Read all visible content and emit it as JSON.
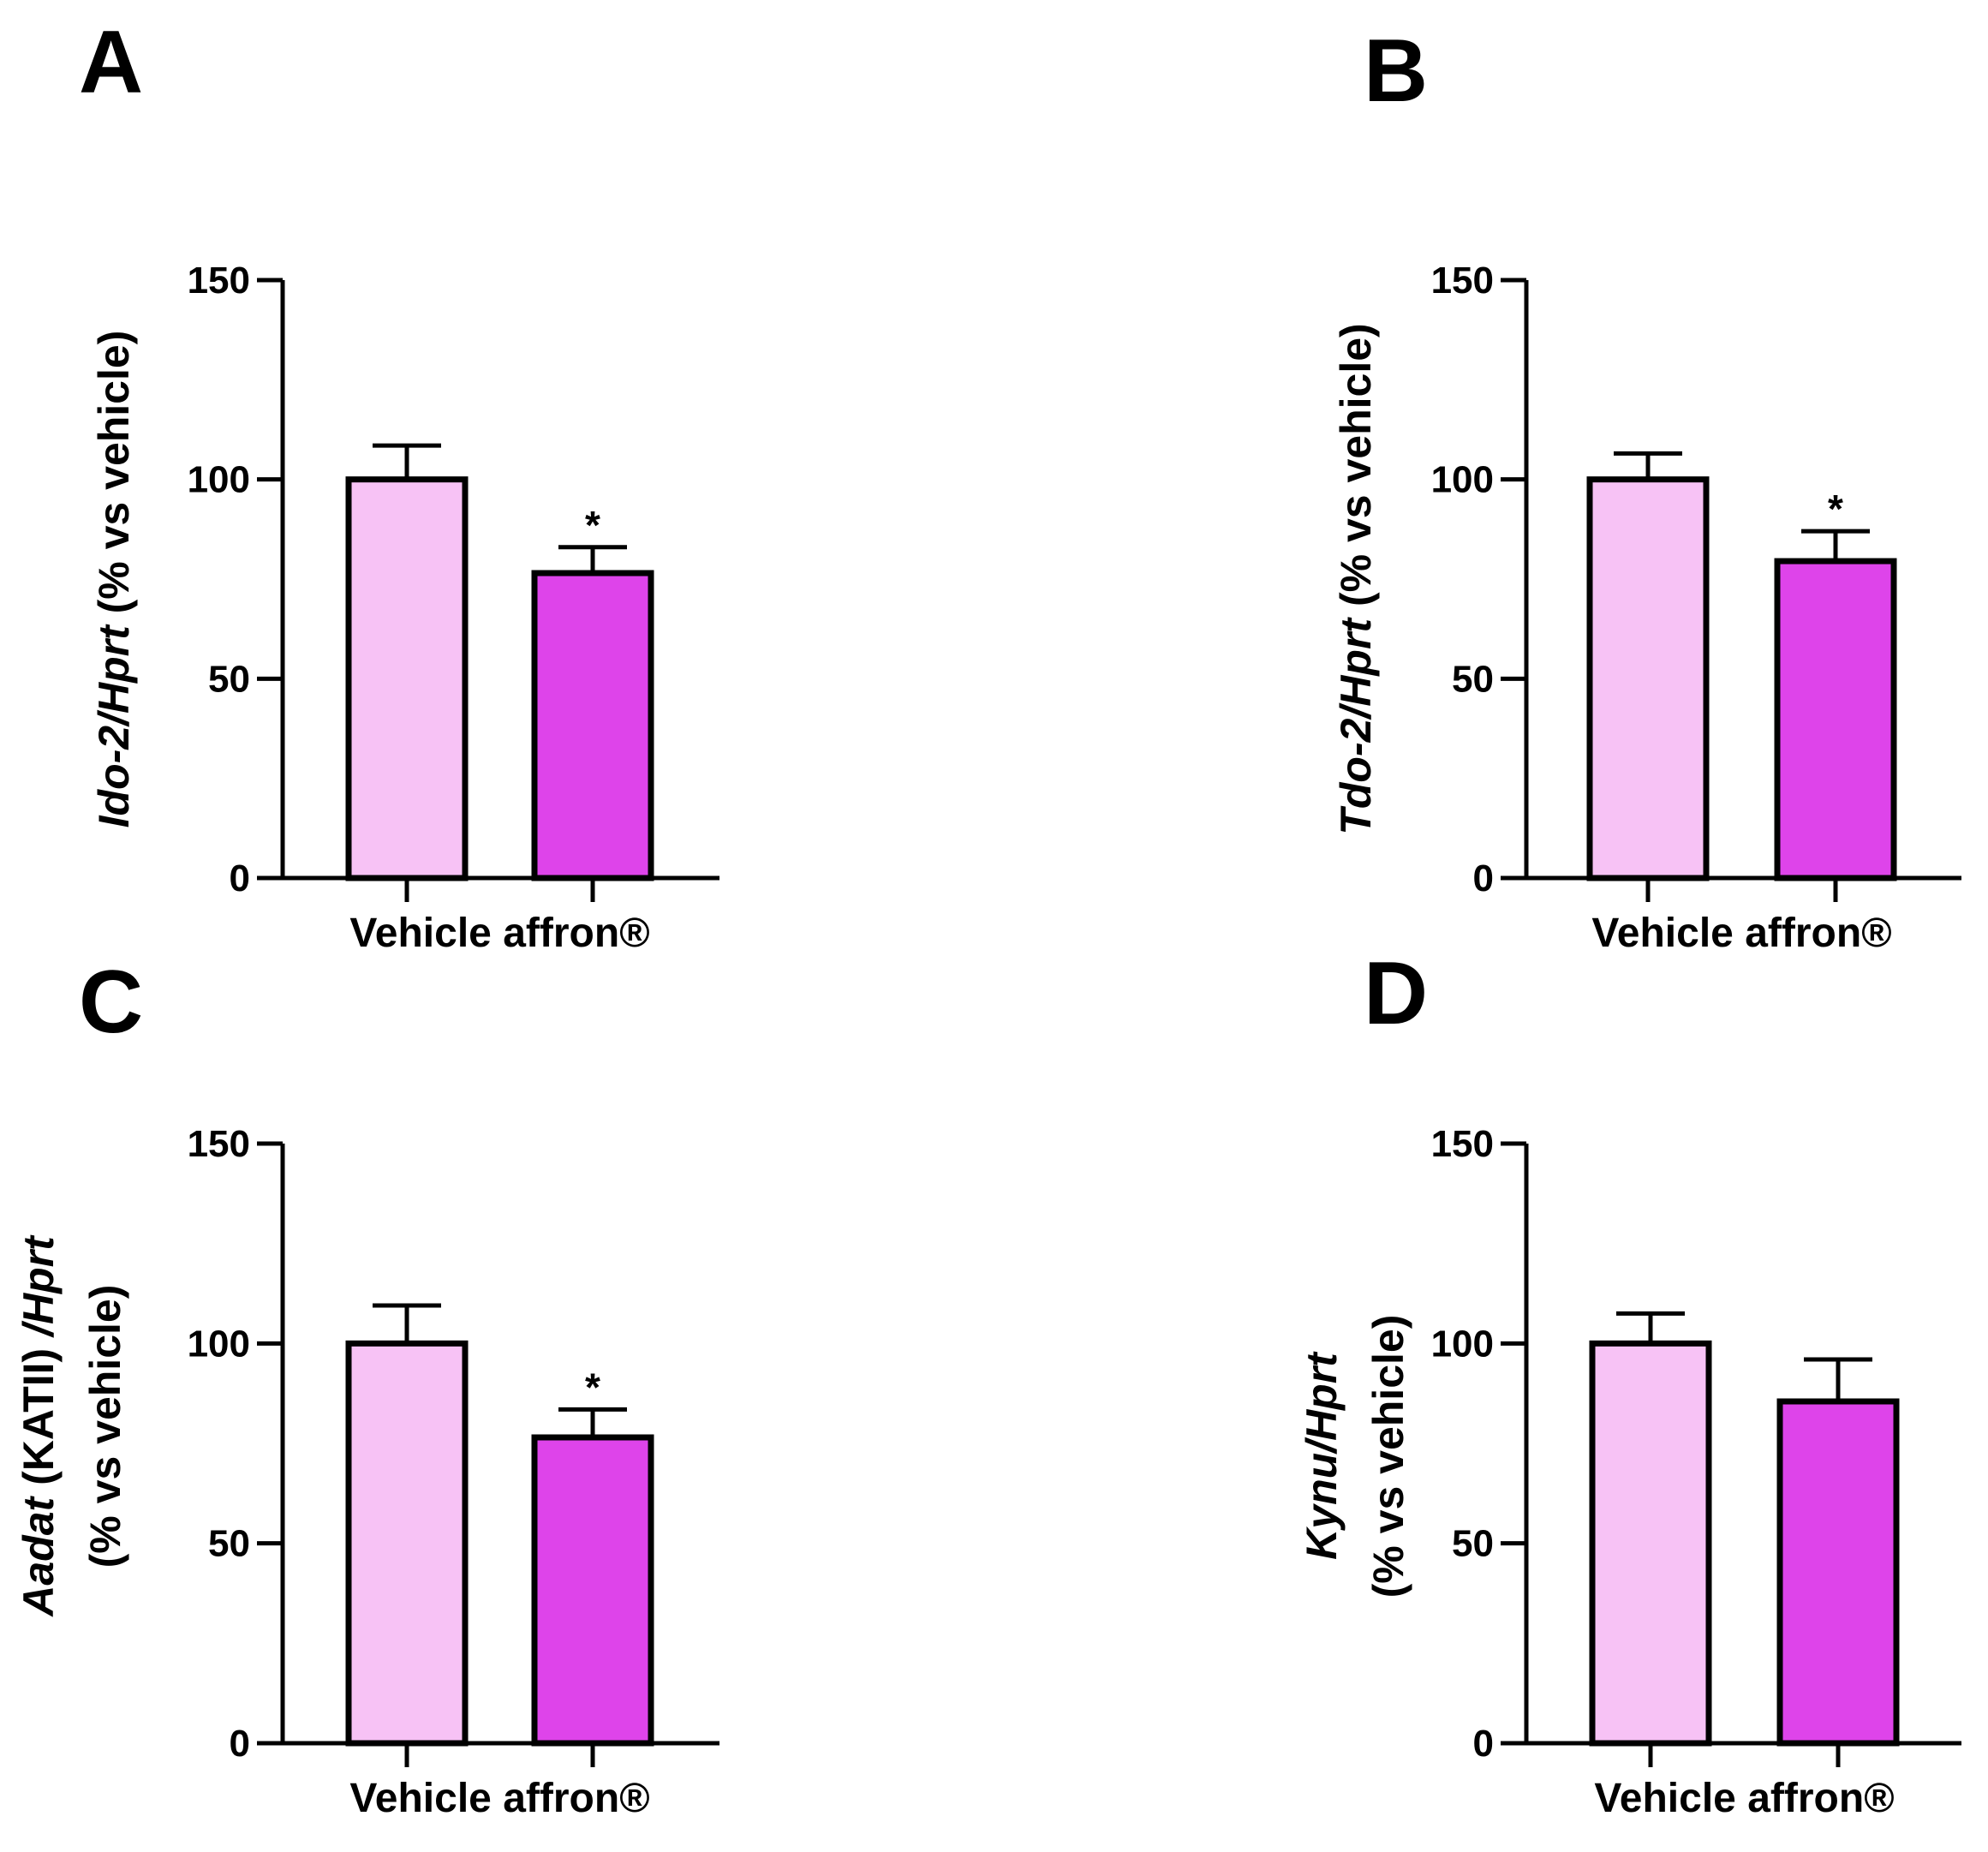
{
  "colors": {
    "vehicle": "#f7c2f5",
    "affron": "#de44ea",
    "stroke": "#000000"
  },
  "chart_data": [
    {
      "panel": "A",
      "type": "bar",
      "categories": [
        "Vehicle",
        "affron®"
      ],
      "values": [
        100,
        76.5
      ],
      "errors": [
        8.5,
        6.5
      ],
      "significance": [
        "",
        "*"
      ],
      "ylabel_parts": [
        {
          "text": "Ido-2/Hprt",
          "italic": true
        },
        {
          "text": " (% vs vehicle)",
          "italic": false
        }
      ],
      "ylim": [
        0,
        150
      ],
      "yticks": [
        0,
        50,
        100,
        150
      ]
    },
    {
      "panel": "B",
      "type": "bar",
      "categories": [
        "Vehicle",
        "affron®"
      ],
      "values": [
        100,
        79.5
      ],
      "errors": [
        6.5,
        7.5
      ],
      "significance": [
        "",
        "*"
      ],
      "ylabel_parts": [
        {
          "text": "Tdo-2/Hprt",
          "italic": true
        },
        {
          "text": " (% vs vehicle)",
          "italic": false
        }
      ],
      "ylim": [
        0,
        150
      ],
      "yticks": [
        0,
        50,
        100,
        150
      ]
    },
    {
      "panel": "C",
      "type": "bar",
      "categories": [
        "Vehicle",
        "affron®"
      ],
      "values": [
        100,
        76.5
      ],
      "errors": [
        9.5,
        7
      ],
      "significance": [
        "",
        "*"
      ],
      "ylabel_lines": [
        [
          {
            "text": "Aadat",
            "italic": true
          },
          {
            "text": " (KATII) ",
            "italic": false
          },
          {
            "text": "/Hprt",
            "italic": true
          }
        ],
        [
          {
            "text": "(% vs vehicle)",
            "italic": false
          }
        ]
      ],
      "ylim": [
        0,
        150
      ],
      "yticks": [
        0,
        50,
        100,
        150
      ]
    },
    {
      "panel": "D",
      "type": "bar",
      "categories": [
        "Vehicle",
        "affron®"
      ],
      "values": [
        100,
        85.5
      ],
      "errors": [
        7.5,
        10.5
      ],
      "significance": [
        "",
        ""
      ],
      "ylabel_lines": [
        [
          {
            "text": "Kynu/Hprt",
            "italic": true
          }
        ],
        [
          {
            "text": "(% vs vehicle)",
            "italic": false
          }
        ]
      ],
      "ylim": [
        0,
        150
      ],
      "yticks": [
        0,
        50,
        100,
        150
      ]
    }
  ]
}
